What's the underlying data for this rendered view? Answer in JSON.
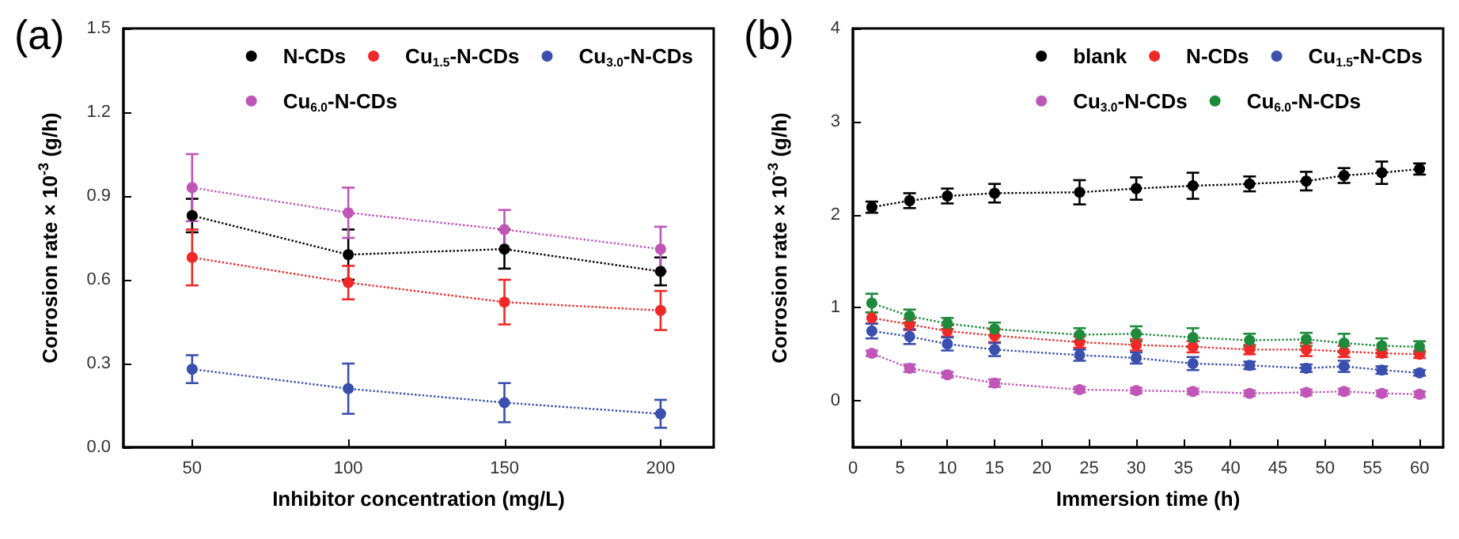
{
  "chart_data": [
    {
      "type": "line",
      "title": "(a)",
      "xlabel": "Inhibitor concentration (mg/L)",
      "ylabel": "Corrosion rate × 10$^{-3}$ (g/h)",
      "x": [
        50,
        100,
        150,
        200
      ],
      "xlim": [
        28,
        217
      ],
      "xticks": [
        50,
        100,
        150,
        200
      ],
      "ylim": [
        0,
        1.5
      ],
      "yticks": [
        {
          "value": 0,
          "label": "0.0"
        },
        0.3,
        0.6,
        0.9,
        1.2,
        1.5
      ],
      "marker": "circle",
      "line_style": "dotted",
      "grid": false,
      "legend": "top right",
      "series": [
        {
          "name": "N-CDs",
          "color": "#000000",
          "values": [
            0.83,
            0.69,
            0.71,
            0.63
          ],
          "errors": [
            0.06,
            0.09,
            0.07,
            0.05
          ]
        },
        {
          "name": "Cu$_{1.5}$-N-CDs",
          "color": "#f02828",
          "values": [
            0.68,
            0.59,
            0.52,
            0.49
          ],
          "errors": [
            0.1,
            0.06,
            0.08,
            0.07
          ]
        },
        {
          "name": "Cu$_{3.0}$-N-CDs",
          "color": "#3a4fae",
          "values": [
            0.28,
            0.21,
            0.16,
            0.12
          ],
          "errors": [
            0.05,
            0.09,
            0.07,
            0.05
          ]
        },
        {
          "name": "Cu$_{6.0}$-N-CDs",
          "color": "#c055b8",
          "values": [
            0.93,
            0.84,
            0.78,
            0.71
          ],
          "errors": [
            0.12,
            0.09,
            0.07,
            0.08
          ]
        }
      ]
    },
    {
      "type": "line",
      "title": "(b)",
      "xlabel": "Immersion time (h)",
      "ylabel": "Corrosion rate × 10$^{-3}$ (g/h)",
      "x": [
        2,
        6,
        10,
        15,
        24,
        30,
        36,
        42,
        48,
        52,
        56,
        60
      ],
      "xlim": [
        0,
        62.5
      ],
      "xticks": [
        0,
        5,
        10,
        15,
        20,
        25,
        30,
        35,
        40,
        45,
        50,
        55,
        60
      ],
      "ylim": [
        -0.5,
        4
      ],
      "yticks": [
        0,
        1,
        2,
        3,
        4
      ],
      "marker": "circle",
      "line_style": "dotted",
      "grid": false,
      "legend": "top right",
      "series": [
        {
          "name": "blank",
          "color": "#000000",
          "values": [
            2.08,
            2.15,
            2.2,
            2.23,
            2.24,
            2.28,
            2.31,
            2.33,
            2.36,
            2.42,
            2.45,
            2.49
          ],
          "errors": [
            0.06,
            0.08,
            0.08,
            0.1,
            0.13,
            0.12,
            0.14,
            0.08,
            0.1,
            0.08,
            0.12,
            0.06
          ]
        },
        {
          "name": "N-CDs",
          "color": "#f02828",
          "values": [
            0.89,
            0.82,
            0.75,
            0.7,
            0.63,
            0.6,
            0.58,
            0.55,
            0.55,
            0.53,
            0.51,
            0.5
          ],
          "errors": [
            0.06,
            0.06,
            0.06,
            0.07,
            0.06,
            0.06,
            0.06,
            0.05,
            0.07,
            0.06,
            0.04,
            0.04
          ]
        },
        {
          "name": "Cu$_{1.5}$-N-CDs",
          "color": "#3a4fae",
          "values": [
            0.75,
            0.69,
            0.61,
            0.55,
            0.49,
            0.46,
            0.4,
            0.38,
            0.35,
            0.37,
            0.33,
            0.3
          ],
          "errors": [
            0.08,
            0.08,
            0.07,
            0.07,
            0.06,
            0.06,
            0.07,
            0.04,
            0.04,
            0.06,
            0.04,
            0.03
          ]
        },
        {
          "name": "Cu$_{3.0}$-N-CDs",
          "color": "#c055b8",
          "values": [
            0.51,
            0.35,
            0.28,
            0.19,
            0.12,
            0.11,
            0.1,
            0.08,
            0.09,
            0.1,
            0.08,
            0.07
          ],
          "errors": [
            0.03,
            0.04,
            0.03,
            0.04,
            0.03,
            0.03,
            0.03,
            0.03,
            0.03,
            0.03,
            0.03,
            0.03
          ]
        },
        {
          "name": "Cu$_{6.0}$-N-CDs",
          "color": "#1e8a3c",
          "values": [
            1.05,
            0.91,
            0.83,
            0.77,
            0.71,
            0.72,
            0.68,
            0.65,
            0.66,
            0.62,
            0.59,
            0.58
          ],
          "errors": [
            0.1,
            0.07,
            0.06,
            0.07,
            0.07,
            0.08,
            0.1,
            0.07,
            0.07,
            0.1,
            0.08,
            0.06
          ]
        }
      ]
    }
  ]
}
